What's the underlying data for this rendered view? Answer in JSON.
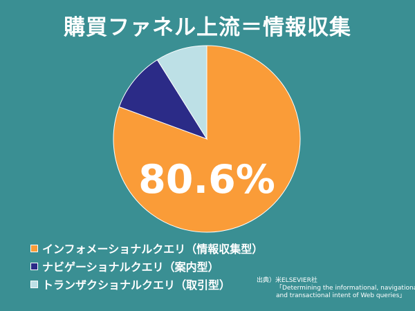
{
  "title": "購買ファネル上流＝情報収集",
  "chart_data": {
    "type": "pie",
    "slices": [
      {
        "label": "インフォメーショナルクエリ（情報収集型）",
        "value": 80.6,
        "color": "#fa9c38"
      },
      {
        "label": "ナビゲーショナルクエリ（案内型）",
        "value": 10.5,
        "color": "#2b2b87"
      },
      {
        "label": "トランザクショナルクエリ（取引型）",
        "value": 8.9,
        "color": "#bde0e6"
      }
    ],
    "highlight_label": "80.6%",
    "legend_placement": "bottom-left"
  },
  "source": {
    "line1": "出典）米ELSEVIER社",
    "line2": "「Determining the informational, navigational,",
    "line3": "and transactional intent of Web queries」"
  },
  "colors": {
    "background": "#3a8f93",
    "text": "#ffffff"
  }
}
